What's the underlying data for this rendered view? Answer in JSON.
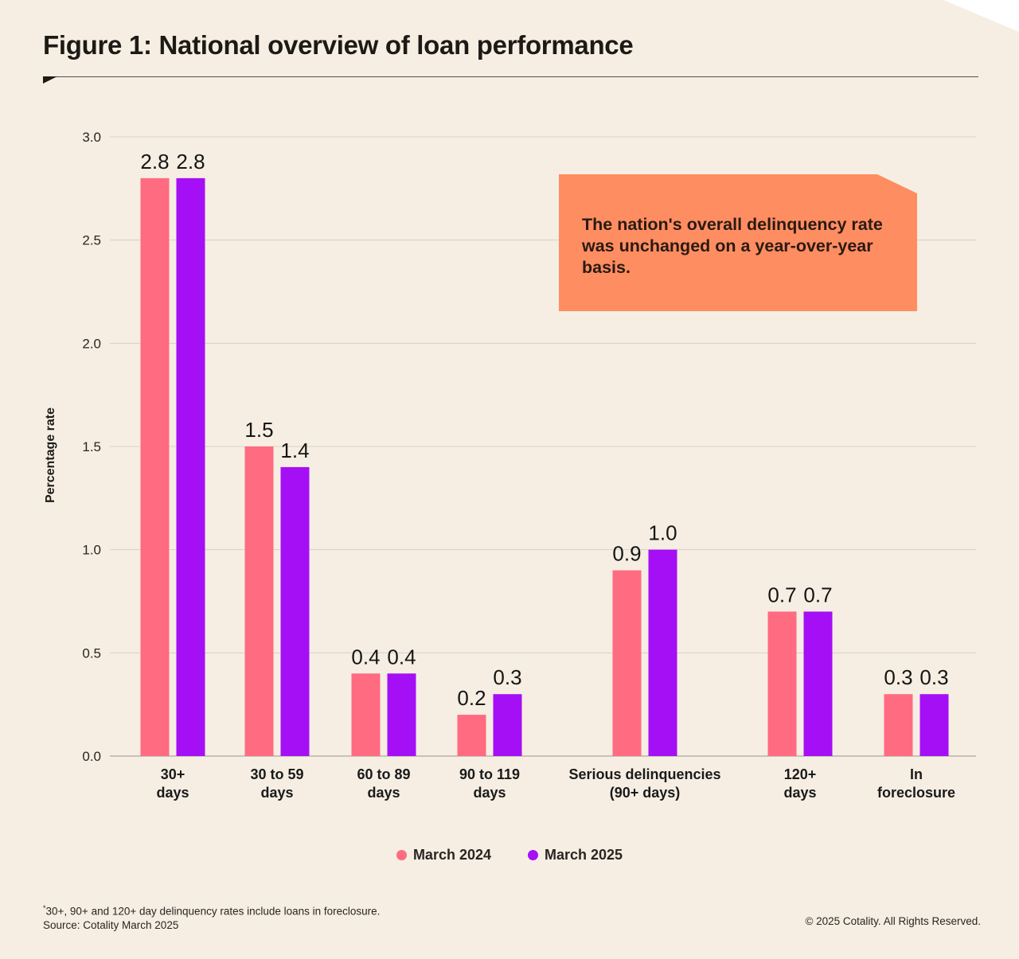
{
  "title": "Figure 1: National overview of loan performance",
  "callout": "The nation's overall delinquency rate was unchanged on a year-over-year basis.",
  "footnote_marker": "*",
  "footnote": "30+, 90+ and 120+ day delinquency rates include loans in foreclosure.",
  "source": "Source: Cotality March 2025",
  "copyright": "© 2025 Cotality. All Rights Reserved.",
  "colors": {
    "series1": "#ff6b80",
    "series2": "#a50ff5",
    "callout": "#ff8d62",
    "background": "#f6eee2"
  },
  "chart_data": {
    "type": "bar",
    "title": "Figure 1: National overview of loan performance",
    "xlabel": "",
    "ylabel": "Percentage rate",
    "ylim": [
      0,
      3.0
    ],
    "yticks": [
      "0.0",
      "0.5",
      "1.0",
      "1.5",
      "2.0",
      "2.5",
      "3.0"
    ],
    "categories": [
      [
        "30+",
        "days"
      ],
      [
        "30 to 59",
        "days"
      ],
      [
        "60 to 89",
        "days"
      ],
      [
        "90 to 119",
        "days"
      ],
      [
        "Serious delinquencies",
        "(90+ days)"
      ],
      [
        "120+",
        "days"
      ],
      [
        "In",
        "foreclosure"
      ]
    ],
    "series": [
      {
        "name": "March 2024",
        "color": "#ff6b80",
        "values": [
          2.8,
          1.5,
          0.4,
          0.2,
          0.9,
          0.7,
          0.3
        ],
        "labels": [
          "2.8",
          "1.5",
          "0.4",
          "0.2",
          "0.9",
          "0.7",
          "0.3"
        ]
      },
      {
        "name": "March 2025",
        "color": "#a50ff5",
        "values": [
          2.8,
          1.4,
          0.4,
          0.3,
          1.0,
          0.7,
          0.3
        ],
        "labels": [
          "2.8",
          "1.4",
          "0.4",
          "0.3",
          "1.0",
          "0.7",
          "0.3"
        ]
      }
    ],
    "legend_position": "bottom-center",
    "grid": true
  }
}
